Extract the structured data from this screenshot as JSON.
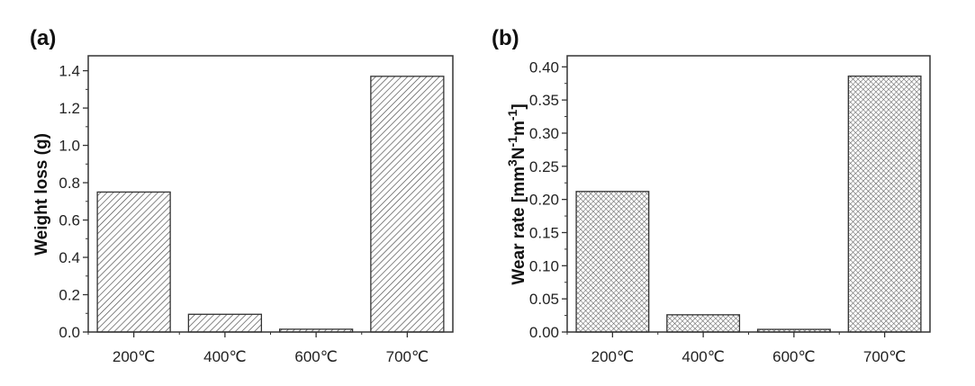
{
  "chart_data": [
    {
      "type": "bar",
      "panel_label": "(a)",
      "categories": [
        "200℃",
        "400℃",
        "600℃",
        "700℃"
      ],
      "values": [
        0.75,
        0.095,
        0.015,
        1.37
      ],
      "xlabel": "",
      "ylabel": "Weight loss (g)",
      "ylim": [
        0,
        1.48
      ],
      "yticks": [
        "0.0",
        "0.2",
        "0.4",
        "0.6",
        "0.8",
        "1.0",
        "1.2",
        "1.4"
      ],
      "pattern": "diagonal-hatch",
      "grid": false
    },
    {
      "type": "bar",
      "panel_label": "(b)",
      "categories": [
        "200℃",
        "400℃",
        "600℃",
        "700℃"
      ],
      "values": [
        0.212,
        0.026,
        0.004,
        0.386
      ],
      "xlabel": "",
      "ylabel_parts": [
        "Wear rate [mm",
        "3",
        "N",
        "-1",
        "m",
        "-1",
        "]"
      ],
      "ylim": [
        0,
        0.4167
      ],
      "yticks": [
        "0.00",
        "0.05",
        "0.10",
        "0.15",
        "0.20",
        "0.25",
        "0.30",
        "0.35",
        "0.40"
      ],
      "pattern": "cross-hatch",
      "grid": false
    }
  ]
}
